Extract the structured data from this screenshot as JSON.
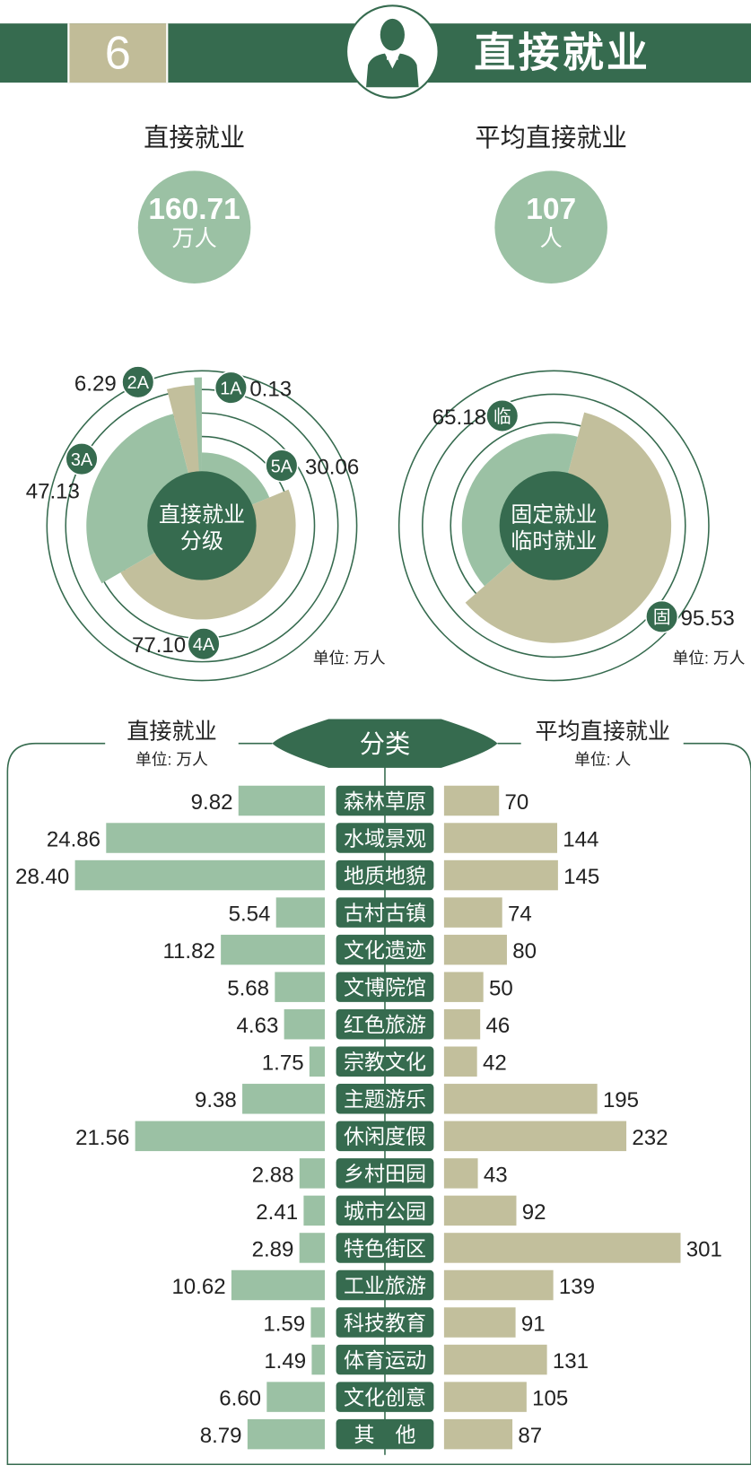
{
  "header": {
    "section_number": "6",
    "title": "直接就业",
    "icon": "waiter-person-icon"
  },
  "kpis": [
    {
      "label": "直接就业",
      "value": "160.71",
      "unit": "万人"
    },
    {
      "label": "平均直接就业",
      "value": "107",
      "unit": "人"
    }
  ],
  "colors": {
    "dark_green": "#366b4f",
    "tan": "#c2bf9c",
    "light_green": "#9bc1a4",
    "beige": "#c1bc98"
  },
  "chart_data": [
    {
      "type": "pie",
      "title": "直接就业分级",
      "unit_label": "单位: 万人",
      "slices": [
        {
          "name": "5A",
          "value": 30.06,
          "color": "#9bc1a4"
        },
        {
          "name": "4A",
          "value": 77.1,
          "color": "#c2bf9c"
        },
        {
          "name": "3A",
          "value": 47.13,
          "color": "#9bc1a4"
        },
        {
          "name": "2A",
          "value": 6.29,
          "color": "#c2bf9c"
        },
        {
          "name": "1A",
          "value": 0.13,
          "color": "#9bc1a4"
        }
      ]
    },
    {
      "type": "pie",
      "title_line1": "固定就业",
      "title_line2": "临时就业",
      "unit_label": "单位: 万人",
      "slices": [
        {
          "name": "固",
          "value": 95.53,
          "color": "#c2bf9c"
        },
        {
          "name": "临",
          "value": 65.18,
          "color": "#9bc1a4"
        }
      ]
    },
    {
      "type": "bar",
      "center_label": "分类",
      "left_title": "直接就业",
      "left_unit": "单位: 万人",
      "right_title": "平均直接就业",
      "right_unit": "单位: 人",
      "categories": [
        "森林草原",
        "水域景观",
        "地质地貌",
        "古村古镇",
        "文化遗迹",
        "文博院馆",
        "红色旅游",
        "宗教文化",
        "主题游乐",
        "休闲度假",
        "乡村田园",
        "城市公园",
        "特色街区",
        "工业旅游",
        "科技教育",
        "体育运动",
        "文化创意",
        "其　他"
      ],
      "series": [
        {
          "name": "直接就业",
          "values": [
            "9.82",
            "24.86",
            "28.40",
            "5.54",
            "11.82",
            "5.68",
            "4.63",
            "1.75",
            "9.38",
            "21.56",
            "2.88",
            "2.41",
            "2.89",
            "10.62",
            "1.59",
            "1.49",
            "6.60",
            "8.79"
          ]
        },
        {
          "name": "平均直接就业",
          "values": [
            "70",
            "144",
            "145",
            "74",
            "80",
            "50",
            "46",
            "42",
            "195",
            "232",
            "43",
            "92",
            "301",
            "139",
            "91",
            "131",
            "105",
            "87"
          ]
        }
      ]
    }
  ]
}
